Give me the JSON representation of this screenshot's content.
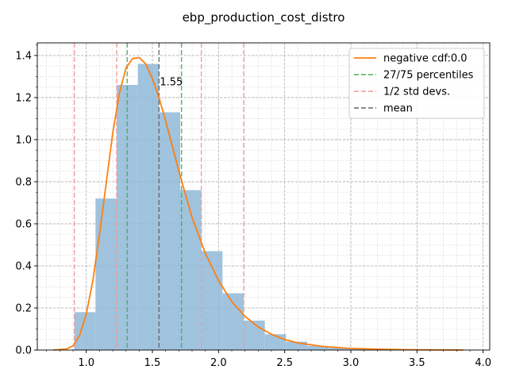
{
  "chart_data": {
    "type": "bar",
    "title": "ebp_production_cost_distro",
    "xlabel": "",
    "ylabel": "",
    "xlim": [
      0.63,
      4.05
    ],
    "ylim": [
      0,
      1.46
    ],
    "grid": true,
    "legend_position": "top-right",
    "x_ticks": [
      1.0,
      1.5,
      2.0,
      2.5,
      3.0,
      3.5,
      4.0
    ],
    "x_tick_labels": [
      "1.0",
      "1.5",
      "2.0",
      "2.5",
      "3.0",
      "3.5",
      "4.0"
    ],
    "y_ticks": [
      0.0,
      0.2,
      0.4,
      0.6,
      0.8,
      1.0,
      1.2,
      1.4
    ],
    "y_tick_labels": [
      "0.0",
      "0.2",
      "0.4",
      "0.6",
      "0.8",
      "1.0",
      "1.2",
      "1.4"
    ],
    "histogram": {
      "bin_edges": [
        0.91,
        1.07,
        1.23,
        1.39,
        1.55,
        1.71,
        1.87,
        2.03,
        2.19,
        2.35,
        2.51,
        2.67,
        2.83,
        2.99,
        3.15,
        3.31,
        3.47,
        3.63,
        3.79,
        3.95
      ],
      "densities": [
        0.18,
        0.72,
        1.26,
        1.36,
        1.13,
        0.76,
        0.47,
        0.27,
        0.14,
        0.075,
        0.04,
        0.02,
        0.01,
        0.006,
        0.004,
        0.002,
        0.001,
        0.001,
        0.0005
      ],
      "color": "#8fb9d8"
    },
    "series": [
      {
        "name": "negative cdf:0.0",
        "type": "line",
        "color": "#ff7f0e",
        "x": [
          0.75,
          0.85,
          0.9,
          0.95,
          1.0,
          1.05,
          1.1,
          1.15,
          1.2,
          1.25,
          1.3,
          1.35,
          1.4,
          1.45,
          1.5,
          1.55,
          1.6,
          1.65,
          1.7,
          1.75,
          1.8,
          1.9,
          2.0,
          2.1,
          2.2,
          2.3,
          2.4,
          2.5,
          2.6,
          2.8,
          3.0,
          3.2,
          3.4,
          3.6,
          3.85
        ],
        "y": [
          0.0,
          0.005,
          0.02,
          0.07,
          0.17,
          0.33,
          0.55,
          0.79,
          1.03,
          1.22,
          1.34,
          1.385,
          1.39,
          1.36,
          1.29,
          1.2,
          1.09,
          0.97,
          0.85,
          0.74,
          0.63,
          0.46,
          0.33,
          0.23,
          0.16,
          0.11,
          0.075,
          0.05,
          0.034,
          0.016,
          0.008,
          0.004,
          0.002,
          0.001,
          0.0
        ]
      }
    ],
    "vlines": [
      {
        "group": "27/75 percentiles",
        "x": 1.31,
        "color": "#4caf50"
      },
      {
        "group": "27/75 percentiles",
        "x": 1.72,
        "color": "#4caf50"
      },
      {
        "group": "1/2 std devs.",
        "x": 0.91,
        "color": "#ef9a9a"
      },
      {
        "group": "1/2 std devs.",
        "x": 1.23,
        "color": "#ef9a9a"
      },
      {
        "group": "1/2 std devs.",
        "x": 1.87,
        "color": "#ef9a9a"
      },
      {
        "group": "1/2 std devs.",
        "x": 2.19,
        "color": "#ef9a9a"
      },
      {
        "group": "mean",
        "x": 1.55,
        "color": "#666666"
      }
    ],
    "annotation": {
      "text": "1.55",
      "x": 1.55,
      "y": 1.25
    },
    "legend": [
      {
        "label": "negative cdf:0.0",
        "color": "#ff7f0e",
        "style": "solid"
      },
      {
        "label": "27/75 percentiles",
        "color": "#4caf50",
        "style": "dashed"
      },
      {
        "label": "1/2 std devs.",
        "color": "#ef9a9a",
        "style": "dashed"
      },
      {
        "label": "mean",
        "color": "#666666",
        "style": "dashed"
      }
    ]
  }
}
